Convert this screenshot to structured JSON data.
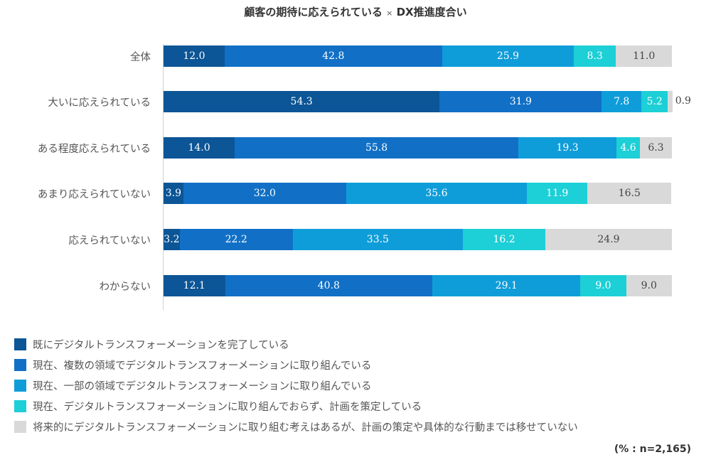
{
  "chart_data": {
    "type": "bar",
    "orientation": "horizontal",
    "stacked": true,
    "title_main": "顧客の期待に応えられている",
    "title_sep": "×",
    "title_sub": "DX推進度合い",
    "categories": [
      "全体",
      "大いに応えられている",
      "ある程度応えられている",
      "あまり応えられていない",
      "応えられていない",
      "わからない"
    ],
    "series": [
      {
        "name": "既にデジタルトランスフォーメーションを完了している",
        "color": "#0c5596",
        "values": [
          12.0,
          54.3,
          14.0,
          3.9,
          3.2,
          12.1
        ]
      },
      {
        "name": "現在、複数の領域でデジタルトランスフォーメーションに取り組んでいる",
        "color": "#1170c6",
        "values": [
          42.8,
          31.9,
          55.8,
          32.0,
          22.2,
          40.8
        ]
      },
      {
        "name": "現在、一部の領域でデジタルトランスフォーメーションに取り組んでいる",
        "color": "#0f9dd9",
        "values": [
          25.9,
          7.8,
          19.3,
          35.6,
          33.5,
          29.1
        ]
      },
      {
        "name": "現在、デジタルトランスフォーメーションに取り組んでおらず、計画を策定している",
        "color": "#1dcfd6",
        "values": [
          8.3,
          5.2,
          4.6,
          11.9,
          16.2,
          9.0
        ]
      },
      {
        "name": "将来的にデジタルトランスフォーメーションに取り組む考えはあるが、計画の策定や具体的な行動までは移せていない",
        "color": "#d9d9d9",
        "values": [
          11.0,
          0.9,
          6.3,
          16.5,
          24.9,
          9.0
        ]
      }
    ],
    "xlim": [
      0,
      100
    ],
    "grid": false,
    "legend_position": "bottom-left",
    "note": "(% : n=2,165)"
  }
}
